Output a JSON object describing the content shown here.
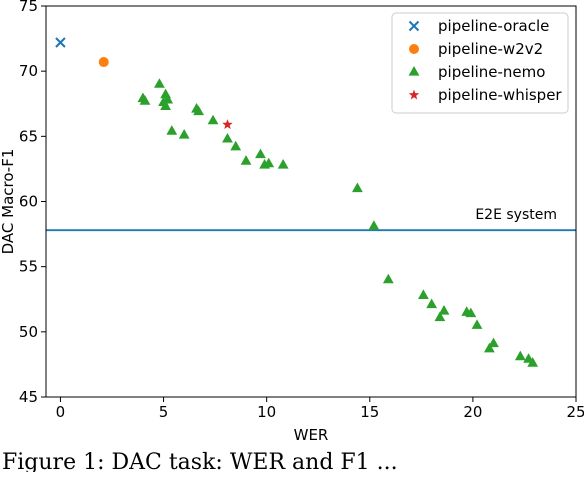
{
  "chart_data": {
    "type": "scatter",
    "xlabel": "WER",
    "ylabel": "DAC Macro-F1",
    "xlim": [
      -0.7,
      25
    ],
    "ylim": [
      45,
      75
    ],
    "xticks": [
      0,
      5,
      10,
      15,
      20,
      25
    ],
    "yticks": [
      45,
      50,
      55,
      60,
      65,
      70,
      75
    ],
    "grid": false,
    "legend_position": "top-right",
    "series": [
      {
        "name": "pipeline-oracle",
        "marker": "x",
        "color": "#1f77b4",
        "points": [
          [
            0.0,
            72.2
          ]
        ]
      },
      {
        "name": "pipeline-w2v2",
        "marker": "circle",
        "color": "#ff7f0e",
        "points": [
          [
            2.1,
            70.7
          ]
        ]
      },
      {
        "name": "pipeline-nemo",
        "marker": "triangle",
        "color": "#2ca02c",
        "points": [
          [
            4.0,
            67.9
          ],
          [
            4.1,
            67.7
          ],
          [
            4.8,
            69.0
          ],
          [
            5.0,
            67.6
          ],
          [
            5.1,
            68.2
          ],
          [
            5.1,
            67.3
          ],
          [
            5.2,
            67.8
          ],
          [
            5.4,
            65.4
          ],
          [
            6.0,
            65.1
          ],
          [
            6.6,
            67.1
          ],
          [
            6.7,
            66.9
          ],
          [
            7.4,
            66.2
          ],
          [
            8.1,
            64.8
          ],
          [
            8.5,
            64.2
          ],
          [
            9.0,
            63.1
          ],
          [
            9.7,
            63.6
          ],
          [
            9.9,
            62.8
          ],
          [
            10.1,
            62.9
          ],
          [
            10.8,
            62.8
          ],
          [
            14.4,
            61.0
          ],
          [
            15.2,
            58.1
          ],
          [
            15.9,
            54.0
          ],
          [
            17.6,
            52.8
          ],
          [
            18.0,
            52.1
          ],
          [
            18.4,
            51.1
          ],
          [
            18.6,
            51.6
          ],
          [
            19.7,
            51.5
          ],
          [
            19.9,
            51.4
          ],
          [
            20.2,
            50.5
          ],
          [
            20.8,
            48.7
          ],
          [
            21.0,
            49.1
          ],
          [
            22.3,
            48.1
          ],
          [
            22.7,
            47.9
          ],
          [
            22.9,
            47.6
          ]
        ]
      },
      {
        "name": "pipeline-whisper",
        "marker": "star",
        "color": "#d62728",
        "points": [
          [
            8.1,
            65.9
          ]
        ]
      }
    ],
    "reference_line": {
      "orientation": "horizontal",
      "y": 57.8,
      "color": "#1f77b4",
      "label": "E2E system"
    }
  },
  "caption": {
    "text": "Figure 1: DAC task: WER and F1 ... "
  }
}
